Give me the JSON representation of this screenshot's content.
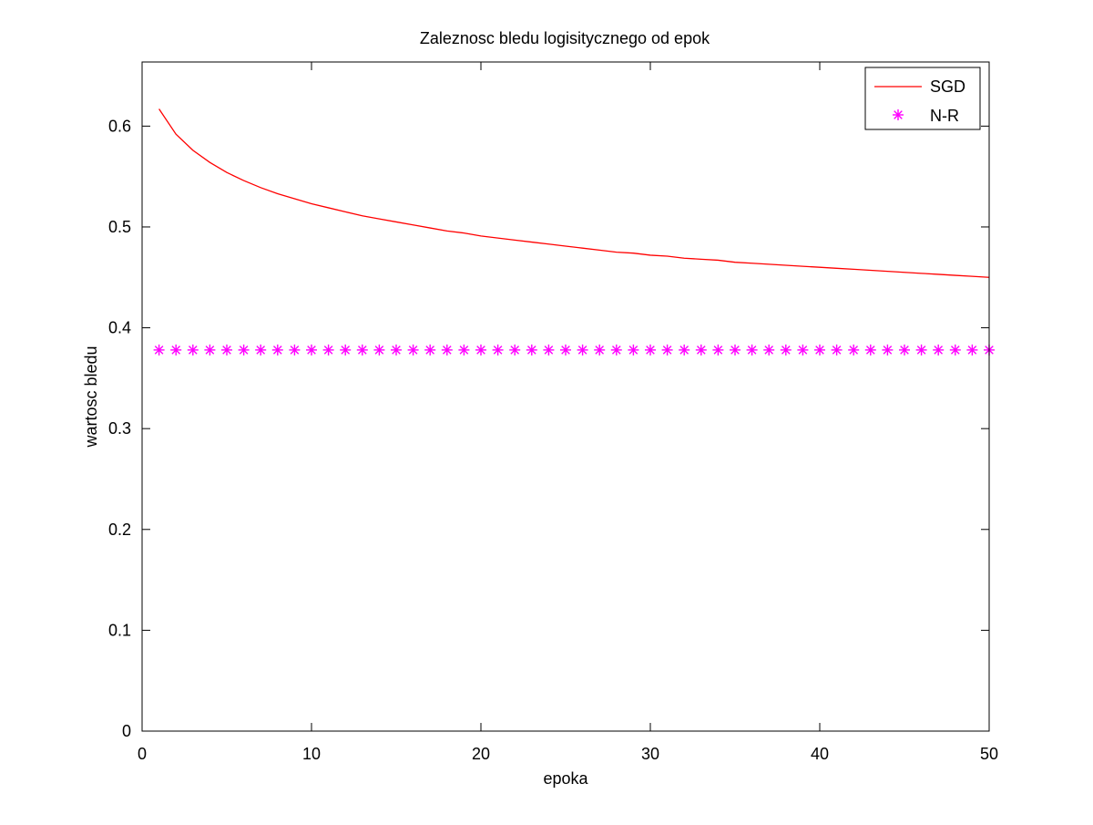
{
  "chart_data": {
    "type": "line",
    "title": "Zaleznosc bledu logisitycznego od epok",
    "xlabel": "epoka",
    "ylabel": "wartosc bledu",
    "xlim": [
      0,
      50
    ],
    "ylim": [
      0,
      0.6636
    ],
    "x_ticks": [
      0,
      10,
      20,
      30,
      40,
      50
    ],
    "x_tick_labels": [
      "0",
      "10",
      "20",
      "30",
      "40",
      "50"
    ],
    "y_ticks": [
      0,
      0.1,
      0.2,
      0.3,
      0.4,
      0.5,
      0.6
    ],
    "y_tick_labels": [
      "0",
      "0.1",
      "0.2",
      "0.3",
      "0.4",
      "0.5",
      "0.6"
    ],
    "grid": false,
    "legend_position": "top-right",
    "series": [
      {
        "name": "SGD",
        "style": "line",
        "color": "#ff0000",
        "x": [
          1,
          2,
          3,
          4,
          5,
          6,
          7,
          8,
          9,
          10,
          11,
          12,
          13,
          14,
          15,
          16,
          17,
          18,
          19,
          20,
          21,
          22,
          23,
          24,
          25,
          26,
          27,
          28,
          29,
          30,
          31,
          32,
          33,
          34,
          35,
          36,
          37,
          38,
          39,
          40,
          41,
          42,
          43,
          44,
          45,
          46,
          47,
          48,
          49,
          50
        ],
        "y": [
          0.617,
          0.592,
          0.576,
          0.564,
          0.554,
          0.546,
          0.539,
          0.533,
          0.528,
          0.523,
          0.519,
          0.515,
          0.511,
          0.508,
          0.505,
          0.502,
          0.499,
          0.496,
          0.494,
          0.491,
          0.489,
          0.487,
          0.485,
          0.483,
          0.481,
          0.479,
          0.477,
          0.475,
          0.474,
          0.472,
          0.471,
          0.469,
          0.468,
          0.467,
          0.465,
          0.464,
          0.463,
          0.462,
          0.461,
          0.46,
          0.459,
          0.458,
          0.457,
          0.456,
          0.455,
          0.454,
          0.453,
          0.452,
          0.451,
          0.45
        ]
      },
      {
        "name": "N-R",
        "style": "markers",
        "marker": "*",
        "color": "#ff00ff",
        "x": [
          1,
          2,
          3,
          4,
          5,
          6,
          7,
          8,
          9,
          10,
          11,
          12,
          13,
          14,
          15,
          16,
          17,
          18,
          19,
          20,
          21,
          22,
          23,
          24,
          25,
          26,
          27,
          28,
          29,
          30,
          31,
          32,
          33,
          34,
          35,
          36,
          37,
          38,
          39,
          40,
          41,
          42,
          43,
          44,
          45,
          46,
          47,
          48,
          49,
          50
        ],
        "y": [
          0.378,
          0.378,
          0.378,
          0.378,
          0.378,
          0.378,
          0.378,
          0.378,
          0.378,
          0.378,
          0.378,
          0.378,
          0.378,
          0.378,
          0.378,
          0.378,
          0.378,
          0.378,
          0.378,
          0.378,
          0.378,
          0.378,
          0.378,
          0.378,
          0.378,
          0.378,
          0.378,
          0.378,
          0.378,
          0.378,
          0.378,
          0.378,
          0.378,
          0.378,
          0.378,
          0.378,
          0.378,
          0.378,
          0.378,
          0.378,
          0.378,
          0.378,
          0.378,
          0.378,
          0.378,
          0.378,
          0.378,
          0.378,
          0.378,
          0.378
        ]
      }
    ]
  }
}
